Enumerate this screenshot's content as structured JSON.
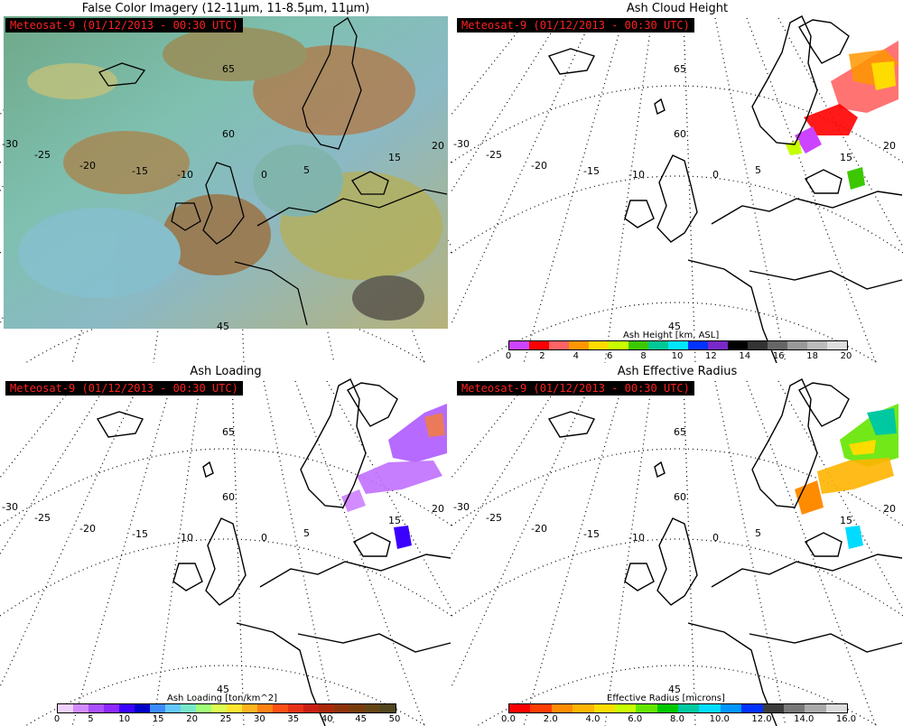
{
  "stamp": "Meteosat-9  (01/12/2013 - 00:30 UTC)",
  "panels": [
    {
      "title": "False Color Imagery (12-11µm, 11-8.5µm, 11µm)"
    },
    {
      "title": "Ash Cloud Height",
      "colorbar": {
        "title": "Ash Height [km, ASL]",
        "colors": [
          "#cc44ff",
          "#ff0000",
          "#ff6464",
          "#ff9600",
          "#ffdc00",
          "#c8ff00",
          "#3cc800",
          "#00c896",
          "#00e6ff",
          "#0032ff",
          "#7828c8",
          "#000000",
          "#333333",
          "#666666",
          "#999999",
          "#bbbbbb",
          "#dddddd"
        ],
        "ticks": [
          "0",
          "2",
          "4",
          "6",
          "8",
          "10",
          "12",
          "14",
          "16",
          "18",
          "20"
        ]
      }
    },
    {
      "title": "Ash Loading",
      "colorbar": {
        "title": "Ash Loading [ton/km^2]",
        "colors": [
          "#f0d2ff",
          "#d28cff",
          "#aa50ff",
          "#8c28ff",
          "#3c00ff",
          "#0000c8",
          "#3c8cff",
          "#64c8ff",
          "#78e6c8",
          "#a0ff78",
          "#dcff50",
          "#ffe632",
          "#ffb41e",
          "#ff8214",
          "#ff5014",
          "#e63214",
          "#c81e14",
          "#aa280a",
          "#8c320a",
          "#783c0a",
          "#644614",
          "#50461e"
        ],
        "ticks": [
          "0",
          "5",
          "10",
          "15",
          "20",
          "25",
          "30",
          "35",
          "40",
          "45",
          "50"
        ]
      }
    },
    {
      "title": "Ash Effective Radius",
      "colorbar": {
        "title": "Effective Radius [microns]",
        "colors": [
          "#ff0000",
          "#ff3c00",
          "#ff8c00",
          "#ffb400",
          "#ffdc00",
          "#c8ff00",
          "#64e600",
          "#00c800",
          "#00c8a0",
          "#00dcff",
          "#0096ff",
          "#0032ff",
          "#3c3c3c",
          "#787878",
          "#aaaaaa",
          "#dcdcdc"
        ],
        "ticks": [
          "0.0",
          "2.0",
          "4.0",
          "6.0",
          "8.0",
          "10.0",
          "12.0",
          "14.0",
          "16.0"
        ]
      }
    }
  ],
  "map_labels": {
    "lat": [
      "65",
      "60",
      "45"
    ],
    "lon": [
      "-30",
      "-25",
      "-20",
      "-15",
      "-10",
      "0",
      "5",
      "15",
      "20"
    ]
  }
}
